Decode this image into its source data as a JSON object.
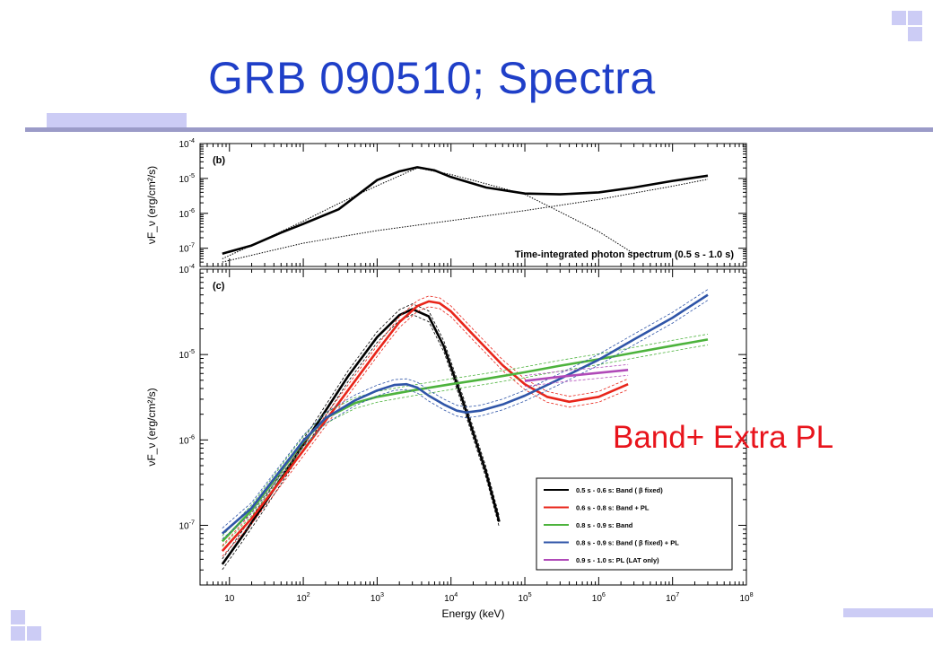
{
  "slide": {
    "title": "GRB 090510; Spectra",
    "annotation": "Band+ Extra PL",
    "colors": {
      "title": "#1f3fc8",
      "annotation": "#e8141c",
      "decor": "#ccccf5",
      "rule": "#9b9bc8"
    }
  },
  "chart_data": [
    {
      "panel": "(b)",
      "type": "line",
      "ylabel": "νF_ν (erg/cm²/s)",
      "xscale": "log",
      "yscale": "log",
      "xlim": [
        4,
        100000000
      ],
      "ylim": [
        3e-08,
        0.0001
      ],
      "ytick_labels": [
        "10^-4",
        "10^-5",
        "10^-6",
        "10^-7"
      ],
      "annotation": "Time-integrated photon spectrum (0.5 s - 1.0 s)",
      "series": [
        {
          "color": "#000000",
          "style": "solid",
          "x": [
            8,
            20,
            50,
            100,
            300,
            1000,
            2000,
            3500,
            6000,
            10000,
            30000,
            100000,
            300000,
            1000000,
            3000000,
            10000000,
            30000000
          ],
          "y": [
            7e-08,
            1.2e-07,
            2.8e-07,
            5e-07,
            1.3e-06,
            9e-06,
            1.6e-05,
            2.1e-05,
            1.7e-05,
            1.1e-05,
            5.5e-06,
            3.7e-06,
            3.5e-06,
            4e-06,
            5.5e-06,
            8.5e-06,
            1.2e-05
          ]
        },
        {
          "color": "#000000",
          "style": "dotted",
          "x": [
            8,
            30,
            100,
            300,
            1000,
            3500,
            10000,
            30000,
            100000,
            300000,
            1000000,
            3000000
          ],
          "y": [
            5e-08,
            1.8e-07,
            6e-07,
            1.9e-06,
            6.2e-06,
            2e-05,
            1.3e-05,
            7e-06,
            3.5e-06,
            1.1e-06,
            3e-07,
            7e-08
          ]
        },
        {
          "color": "#000000",
          "style": "dotted",
          "x": [
            8,
            100,
            1000,
            10000,
            100000,
            1000000,
            10000000,
            30000000
          ],
          "y": [
            4e-08,
            1.4e-07,
            3.2e-07,
            6.2e-07,
            1.2e-06,
            2.5e-06,
            6e-06,
            9.5e-06
          ]
        }
      ]
    },
    {
      "panel": "(c)",
      "type": "line",
      "xlabel": "Energy (keV)",
      "ylabel": "νF_ν (erg/cm²/s)",
      "xscale": "log",
      "yscale": "log",
      "xlim": [
        4,
        100000000
      ],
      "ylim": [
        2e-08,
        0.0001
      ],
      "xtick_labels": [
        "10",
        "10^2",
        "10^3",
        "10^4",
        "10^5",
        "10^6",
        "10^7",
        "10^8"
      ],
      "ytick_labels": [
        "10^-4",
        "10^-5",
        "10^-6",
        "10^-7"
      ],
      "legend": {
        "position": "bottom-right"
      },
      "series": [
        {
          "name": "0.5 s - 0.6 s: Band ( β fixed)",
          "color": "#000000",
          "x": [
            8,
            15,
            30,
            70,
            150,
            400,
            1000,
            2000,
            3000,
            5000,
            8000,
            15000,
            30000,
            45000
          ],
          "y": [
            3.5e-08,
            7.5e-08,
            1.8e-07,
            5.5e-07,
            1.5e-06,
            5.5e-06,
            1.6e-05,
            2.9e-05,
            3.4e-05,
            2.8e-05,
            1.25e-05,
            2.6e-06,
            4.1e-07,
            1.1e-07
          ]
        },
        {
          "name": "0.6 s - 0.8 s: Band + PL",
          "color": "#e8251a",
          "x": [
            8,
            20,
            50,
            100,
            300,
            1000,
            2000,
            3500,
            5000,
            7000,
            10000,
            20000,
            50000,
            100000,
            200000,
            400000,
            1000000,
            2500000
          ],
          "y": [
            5e-08,
            1.2e-07,
            3.4e-07,
            7.5e-07,
            2.7e-06,
            1.1e-05,
            2.4e-05,
            3.7e-05,
            4.2e-05,
            4e-05,
            3.2e-05,
            1.7e-05,
            7.5e-06,
            4.5e-06,
            3.2e-06,
            2.8e-06,
            3.2e-06,
            4.5e-06
          ]
        },
        {
          "name": "0.8 s - 0.9 s: Band",
          "color": "#4db33d",
          "x": [
            8,
            20,
            50,
            100,
            200,
            500,
            1000,
            3000,
            10000,
            30000,
            100000,
            300000,
            1000000,
            3000000,
            10000000,
            30000000
          ],
          "y": [
            6.5e-08,
            1.5e-07,
            4.3e-07,
            9.5e-07,
            1.8e-06,
            2.7e-06,
            3.2e-06,
            3.8e-06,
            4.5e-06,
            5.2e-06,
            6.2e-06,
            7.4e-06,
            8.8e-06,
            1.05e-05,
            1.27e-05,
            1.5e-05
          ]
        },
        {
          "name": "0.8 s - 0.9 s: Band ( β fixed) + PL",
          "color": "#2f55a8",
          "x": [
            8,
            20,
            50,
            100,
            200,
            500,
            1000,
            1700,
            2500,
            3500,
            5000,
            8000,
            12000,
            16000,
            25000,
            50000,
            100000,
            300000,
            1000000,
            3000000,
            10000000,
            30000000
          ],
          "y": [
            8e-08,
            1.6e-07,
            4.5e-07,
            9.8e-07,
            1.8e-06,
            2.9e-06,
            3.8e-06,
            4.4e-06,
            4.5e-06,
            4.1e-06,
            3.3e-06,
            2.6e-06,
            2.2e-06,
            2.1e-06,
            2.2e-06,
            2.6e-06,
            3.3e-06,
            5.2e-06,
            8.7e-06,
            1.5e-05,
            2.7e-05,
            5e-05
          ]
        },
        {
          "name": "0.9 s - 1.0 s: PL (LAT only)",
          "color": "#b04ab8",
          "x": [
            100000,
            300000,
            1000000,
            2500000
          ],
          "y": [
            4.9e-06,
            5.5e-06,
            6.1e-06,
            6.6e-06
          ]
        }
      ]
    }
  ]
}
